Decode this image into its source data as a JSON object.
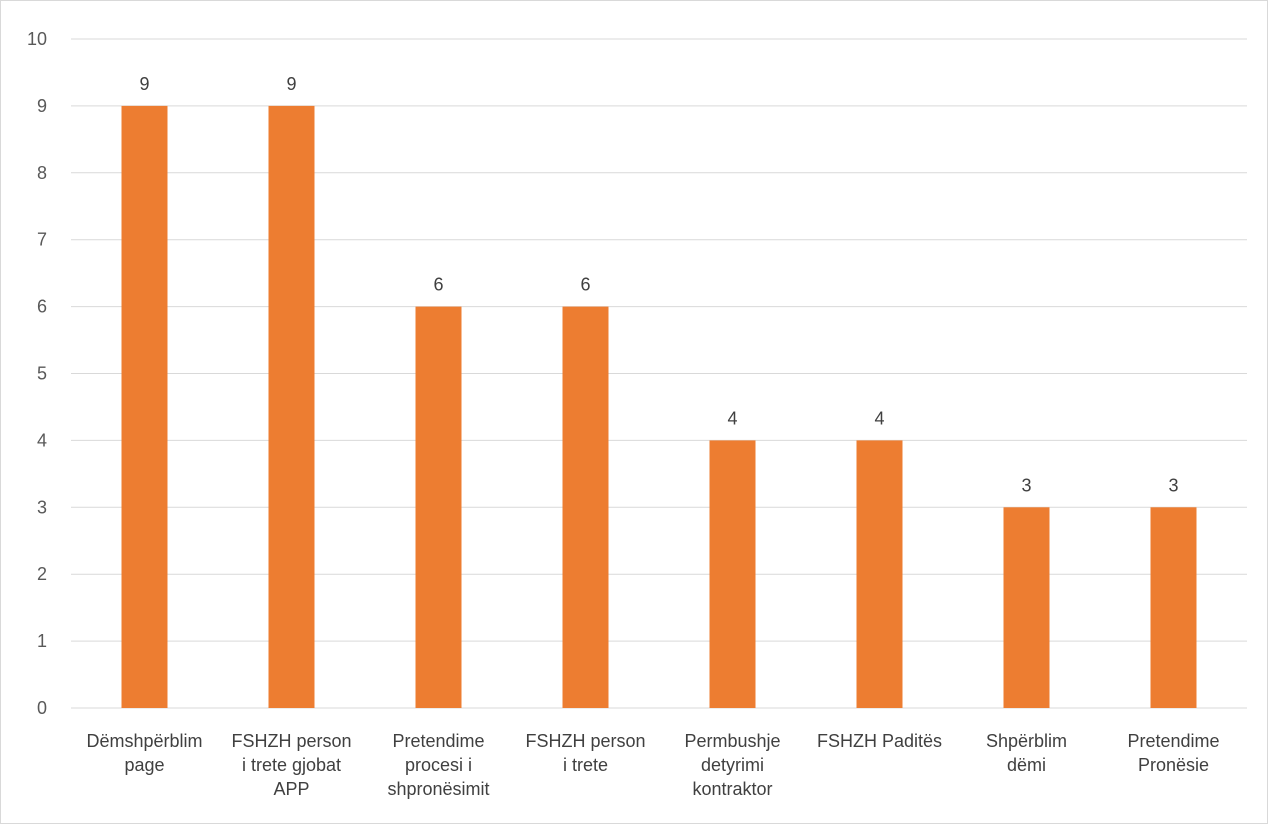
{
  "chart_data": {
    "type": "bar",
    "categories": [
      [
        "Dëmshpërblim",
        "page"
      ],
      [
        "FSHZH person",
        "i trete gjobat",
        "APP"
      ],
      [
        "Pretendime",
        "procesi i",
        "shpronësimit"
      ],
      [
        "FSHZH person",
        "i trete"
      ],
      [
        "Permbushje",
        "detyrimi",
        "kontraktor"
      ],
      [
        "FSHZH Paditës"
      ],
      [
        "Shpërblim",
        "dëmi"
      ],
      [
        "Pretendime",
        "Pronësie"
      ]
    ],
    "values": [
      9,
      9,
      6,
      6,
      4,
      4,
      3,
      3
    ],
    "data_labels": [
      "9",
      "9",
      "6",
      "6",
      "4",
      "4",
      "3",
      "3"
    ],
    "ylim": [
      0,
      10
    ],
    "yticks": [
      "0",
      "1",
      "2",
      "3",
      "4",
      "5",
      "6",
      "7",
      "8",
      "9",
      "10"
    ],
    "grid": true,
    "legend": "none",
    "title": "",
    "xlabel": "",
    "ylabel": "",
    "bar_color": "#ed7d31",
    "gridline_color": "#d9d9d9"
  }
}
